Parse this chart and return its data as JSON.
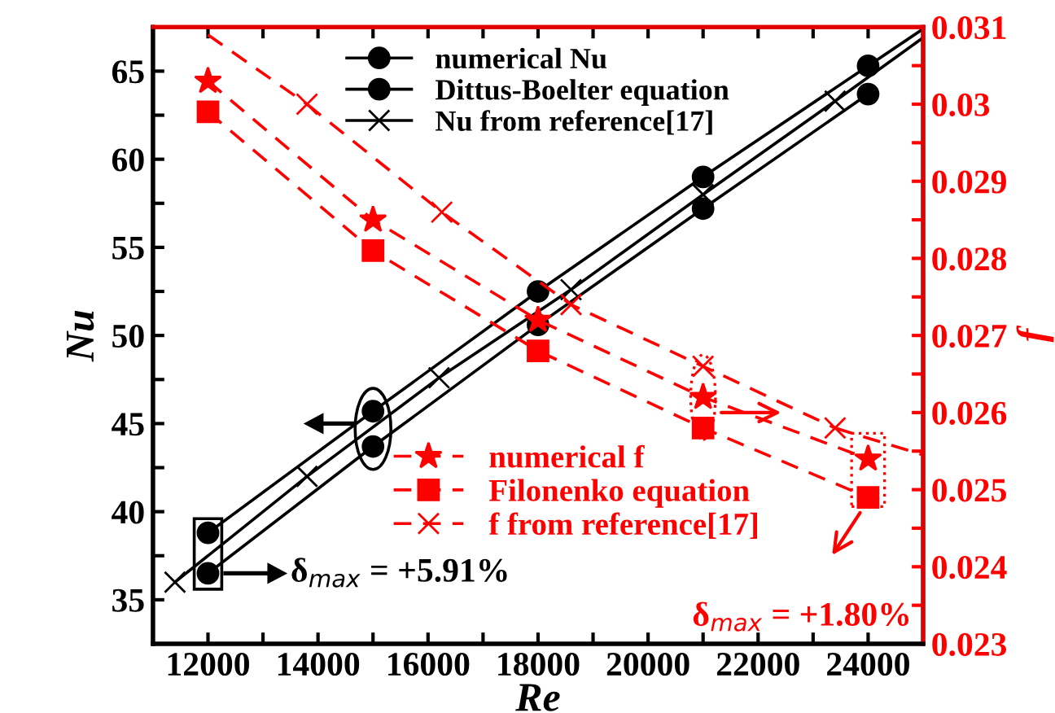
{
  "chart_data": {
    "type": "line",
    "xlabel": "Re",
    "ylabel": "Nu",
    "y2label": "f",
    "xlim": [
      11000,
      25000
    ],
    "ylim": [
      32.5,
      67.5
    ],
    "y2lim": [
      0.023,
      0.031
    ],
    "xticks": [
      12000,
      {
        "value": 13000,
        "label": null
      },
      14000,
      {
        "value": 15000,
        "label": null
      },
      16000,
      {
        "value": 17000,
        "label": null
      },
      18000,
      {
        "value": 19000,
        "label": null
      },
      20000,
      {
        "value": 21000,
        "label": null
      },
      22000,
      {
        "value": 23000,
        "label": null
      },
      24000
    ],
    "yticks": [
      35,
      {
        "value": 37.5,
        "label": null
      },
      40,
      {
        "value": 42.5,
        "label": null
      },
      45,
      {
        "value": 47.5,
        "label": null
      },
      50,
      {
        "value": 52.5,
        "label": null
      },
      55,
      {
        "value": 57.5,
        "label": null
      },
      60,
      {
        "value": 62.5,
        "label": null
      },
      65
    ],
    "y2ticks": [
      0.023,
      {
        "value": 0.0235,
        "label": null
      },
      0.024,
      {
        "value": 0.0245,
        "label": null
      },
      0.025,
      {
        "value": 0.0255,
        "label": null
      },
      0.026,
      {
        "value": 0.0265,
        "label": null
      },
      0.027,
      {
        "value": 0.0275,
        "label": null
      },
      0.028,
      {
        "value": 0.0285,
        "label": null
      },
      0.029,
      {
        "value": 0.0295,
        "label": null
      },
      0.03,
      {
        "value": 0.0305,
        "label": null
      },
      0.031
    ],
    "legend": "top",
    "grid": false,
    "series": [
      {
        "name": "numerical Nu",
        "color": "#000000",
        "x": [
          12000,
          15000,
          18000,
          21000,
          24000
        ],
        "values": [
          38.8,
          45.7,
          52.5,
          59.0,
          65.3
        ],
        "marker": "circle",
        "line_style": "solid"
      },
      {
        "name": "Dittus-Boelter equation",
        "color": "#000000",
        "x": [
          12000,
          15000,
          18000,
          21000,
          24000
        ],
        "values": [
          36.5,
          43.7,
          50.6,
          57.2,
          63.7
        ],
        "marker": "circle",
        "line_style": "solid"
      },
      {
        "name": "Nu from reference[17]",
        "color": "#000000",
        "x": [
          11400,
          13800,
          16200,
          18600,
          21000,
          23400
        ],
        "values": [
          36.0,
          42.0,
          47.6,
          52.6,
          58.0,
          63.3
        ],
        "marker": "cross",
        "line_style": "solid"
      },
      {
        "color": "#000000",
        "x": [
          23400,
          25000
        ],
        "values": [
          63.3,
          66.9
        ],
        "marker": "none",
        "line_style": "solid"
      },
      {
        "color": "#000000",
        "x": [
          24000,
          25000
        ],
        "values": [
          65.3,
          67.4
        ],
        "marker": "none",
        "line_style": "solid"
      },
      {
        "name": "numerical f",
        "color": "#ff0000",
        "axis": "y2",
        "x": [
          12000,
          15000,
          18000,
          21000,
          24000
        ],
        "values": [
          0.0303,
          0.0285,
          0.0272,
          0.0262,
          0.0254
        ],
        "marker": "star",
        "line_style": "dashed"
      },
      {
        "name": "Filonenko equation",
        "color": "#ff0000",
        "axis": "y2",
        "x": [
          12000,
          15000,
          18000,
          21000,
          24000
        ],
        "values": [
          0.0299,
          0.0281,
          0.0268,
          0.0258,
          0.0249
        ],
        "marker": "square",
        "line_style": "dashed"
      },
      {
        "name": "f from reference[17]",
        "color": "#ff0000",
        "axis": "y2",
        "x": [
          13800,
          16250,
          18600,
          21000,
          23400
        ],
        "values": [
          0.03,
          0.0286,
          0.0274,
          0.0266,
          0.0258
        ],
        "marker": "cross",
        "line_style": "dashed"
      },
      {
        "color": "#ff0000",
        "axis": "y2",
        "x": [
          12000,
          13800
        ],
        "values": [
          0.0309,
          0.03
        ],
        "marker": "none",
        "line_style": "dashed"
      },
      {
        "color": "#ff0000",
        "axis": "y2",
        "x": [
          23400,
          25000
        ],
        "values": [
          0.0258,
          0.02545
        ],
        "marker": "none",
        "line_style": "dashed"
      }
    ],
    "annotations": [
      "δ$_{max}$ = +5.91%",
      "δ$_{max}$ = +1.80%"
    ]
  }
}
